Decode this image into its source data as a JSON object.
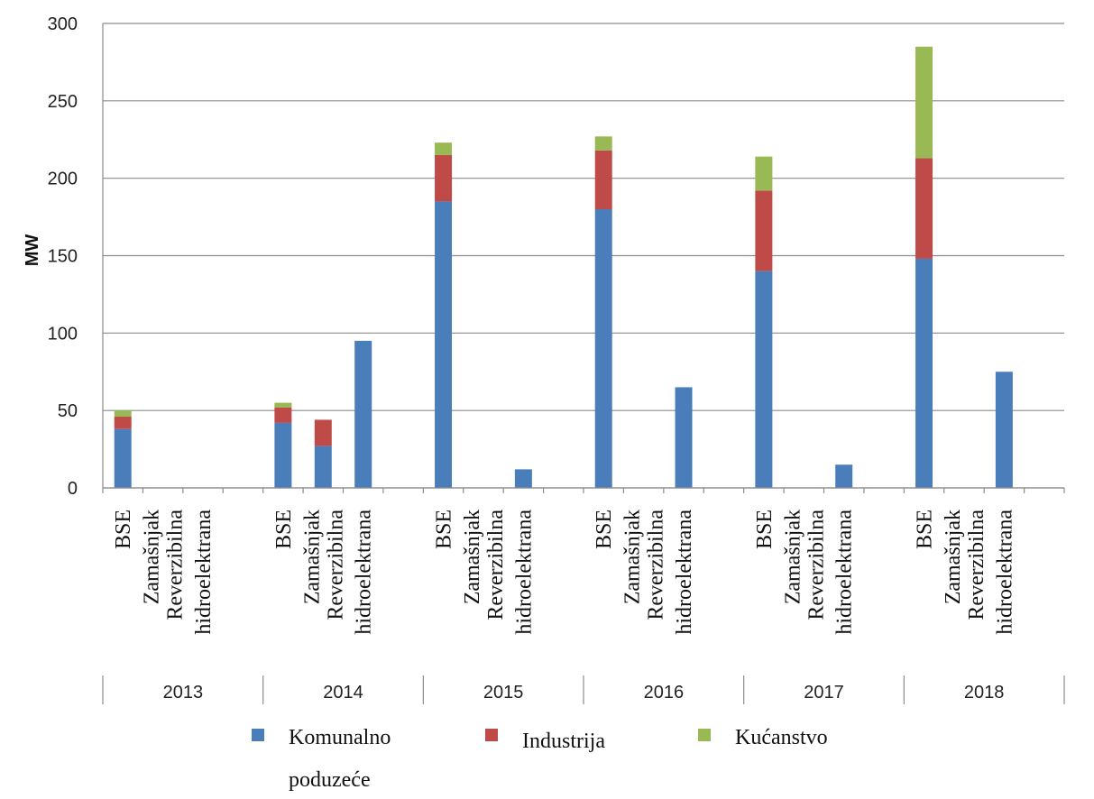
{
  "chart_data": {
    "type": "bar",
    "stacked": true,
    "title": "",
    "ylabel": "MW",
    "xlabel": "",
    "ylim": [
      0,
      300
    ],
    "yticks": [
      0,
      50,
      100,
      150,
      200,
      250,
      300
    ],
    "grid": true,
    "legend_position": "bottom",
    "category_rows": [
      [
        "BSE",
        "Zamašnjak",
        "Reverzibilna",
        "hidroelektrana"
      ]
    ],
    "category_rows_display": [
      [
        "BSE"
      ],
      [
        "Zamašnjak",
        "Reverzibilna"
      ],
      [
        "hidroelektrana"
      ]
    ],
    "years": [
      "2013",
      "2014",
      "2015",
      "2016",
      "2017",
      "2018"
    ],
    "groups_per_year": [
      "BSE",
      "Zamašnjak",
      "Reverzibilna hidroelektrana"
    ],
    "series": [
      {
        "name": "Komunalno poduzeće",
        "color": "#4a7ebb",
        "values": [
          [
            38,
            0,
            0
          ],
          [
            42,
            27,
            95
          ],
          [
            185,
            0,
            12
          ],
          [
            180,
            0,
            65
          ],
          [
            140,
            0,
            15
          ],
          [
            148,
            0,
            75
          ]
        ]
      },
      {
        "name": "Industrija",
        "color": "#be4b48",
        "values": [
          [
            8,
            0,
            0
          ],
          [
            10,
            17,
            0
          ],
          [
            30,
            0,
            0
          ],
          [
            38,
            0,
            0
          ],
          [
            52,
            0,
            0
          ],
          [
            65,
            0,
            0
          ]
        ]
      },
      {
        "name": "Kućanstvo",
        "color": "#98b954",
        "values": [
          [
            4,
            0,
            0
          ],
          [
            3,
            0,
            0
          ],
          [
            8,
            0,
            0
          ],
          [
            9,
            0,
            0
          ],
          [
            22,
            0,
            0
          ],
          [
            72,
            0,
            0
          ]
        ]
      }
    ],
    "legend": [
      {
        "label_line1": "Komunalno",
        "label_line2": "poduzeće",
        "color": "#4a7ebb",
        "icon": "square-marker"
      },
      {
        "label_line1": "Industrija",
        "label_line2": "",
        "color": "#be4b48",
        "icon": "square-marker"
      },
      {
        "label_line1": "Kućanstvo",
        "label_line2": "",
        "color": "#98b954",
        "icon": "square-marker"
      }
    ]
  }
}
